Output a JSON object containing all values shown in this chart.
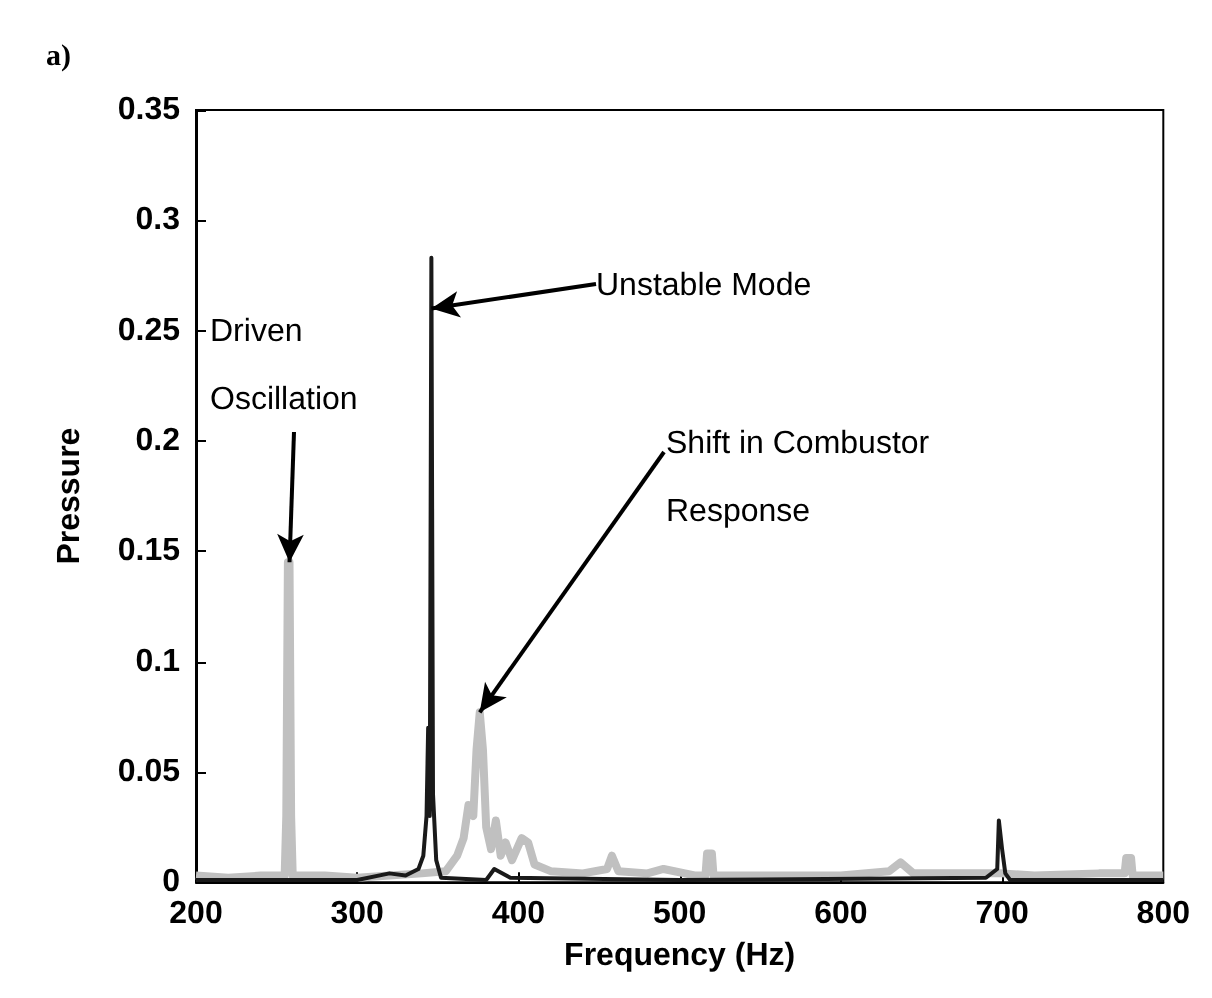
{
  "chart_data": {
    "type": "line",
    "title": "a)",
    "xlabel": "Frequency (Hz)",
    "ylabel": "Pressure",
    "xlim": [
      200,
      800
    ],
    "ylim": [
      0,
      0.35
    ],
    "xticks": [
      200,
      300,
      400,
      500,
      600,
      700,
      800
    ],
    "yticks": [
      0,
      0.05,
      0.1,
      0.15,
      0.2,
      0.25,
      0.3,
      0.35
    ],
    "grid": false,
    "marker": "none",
    "line_style": "solid",
    "series": [
      {
        "color": "#c0c0c0",
        "x": [
          200,
          220,
          240,
          255,
          256,
          257,
          258,
          259,
          260,
          280,
          300,
          320,
          340,
          355,
          362,
          366,
          369,
          372,
          374,
          376,
          378,
          380,
          383,
          386,
          389,
          392,
          396,
          402,
          406,
          410,
          420,
          440,
          455,
          458,
          462,
          480,
          490,
          510,
          516,
          517,
          520,
          521,
          560,
          600,
          630,
          637,
          645,
          700,
          720,
          760,
          776,
          777,
          780,
          781,
          800
        ],
        "values": [
          0.003,
          0.002,
          0.003,
          0.003,
          0.03,
          0.145,
          0.145,
          0.03,
          0.003,
          0.003,
          0.002,
          0.003,
          0.004,
          0.005,
          0.012,
          0.02,
          0.035,
          0.03,
          0.06,
          0.077,
          0.06,
          0.025,
          0.015,
          0.028,
          0.012,
          0.018,
          0.01,
          0.02,
          0.018,
          0.008,
          0.005,
          0.004,
          0.006,
          0.012,
          0.005,
          0.004,
          0.006,
          0.003,
          0.003,
          0.013,
          0.013,
          0.003,
          0.003,
          0.003,
          0.005,
          0.009,
          0.004,
          0.004,
          0.003,
          0.004,
          0.004,
          0.011,
          0.011,
          0.003,
          0.003
        ]
      },
      {
        "color": "#1a1a1a",
        "x": [
          200,
          300,
          320,
          330,
          338,
          341,
          343,
          344,
          345,
          346,
          347,
          349,
          352,
          380,
          385,
          395,
          500,
          690,
          697,
          698,
          700,
          702,
          705,
          800
        ],
        "values": [
          0.001,
          0.001,
          0.004,
          0.003,
          0.006,
          0.012,
          0.03,
          0.07,
          0.03,
          0.283,
          0.04,
          0.01,
          0.002,
          0.001,
          0.006,
          0.002,
          0.001,
          0.002,
          0.006,
          0.028,
          0.015,
          0.004,
          0.001,
          0.001
        ]
      }
    ],
    "annotations": [
      {
        "text": "Driven\nOscillation",
        "x": 258,
        "y": 0.145
      },
      {
        "text": "Unstable Mode",
        "x": 346,
        "y": 0.26
      },
      {
        "text": "Shift in Combustor\nResponse",
        "x": 376,
        "y": 0.077
      }
    ]
  }
}
